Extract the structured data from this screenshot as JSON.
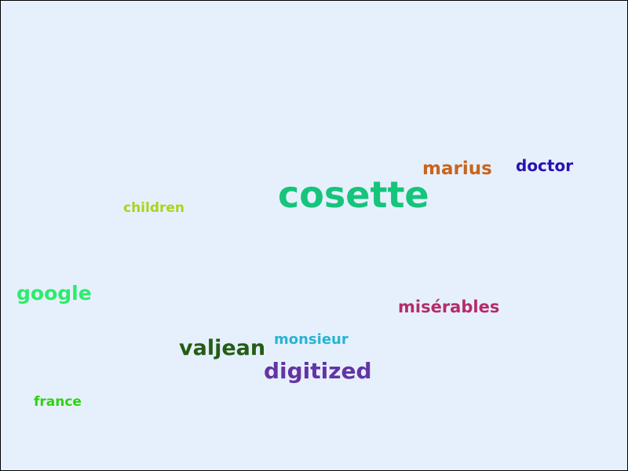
{
  "words": {
    "cosette": {
      "text": "cosette",
      "color": "#16c47c"
    },
    "marius": {
      "text": "marius",
      "color": "#c8641c"
    },
    "doctor": {
      "text": "doctor",
      "color": "#2a10b4"
    },
    "children": {
      "text": "children",
      "color": "#a8d41c"
    },
    "google": {
      "text": "google",
      "color": "#2cec6c"
    },
    "miserables": {
      "text": "misérables",
      "color": "#b42c6c"
    },
    "monsieur": {
      "text": "monsieur",
      "color": "#28b4d4"
    },
    "valjean": {
      "text": "valjean",
      "color": "#245c14"
    },
    "digitized": {
      "text": "digitized",
      "color": "#6434a4"
    },
    "france": {
      "text": "france",
      "color": "#2cd40c"
    }
  },
  "background_color": "#e6f0fd"
}
